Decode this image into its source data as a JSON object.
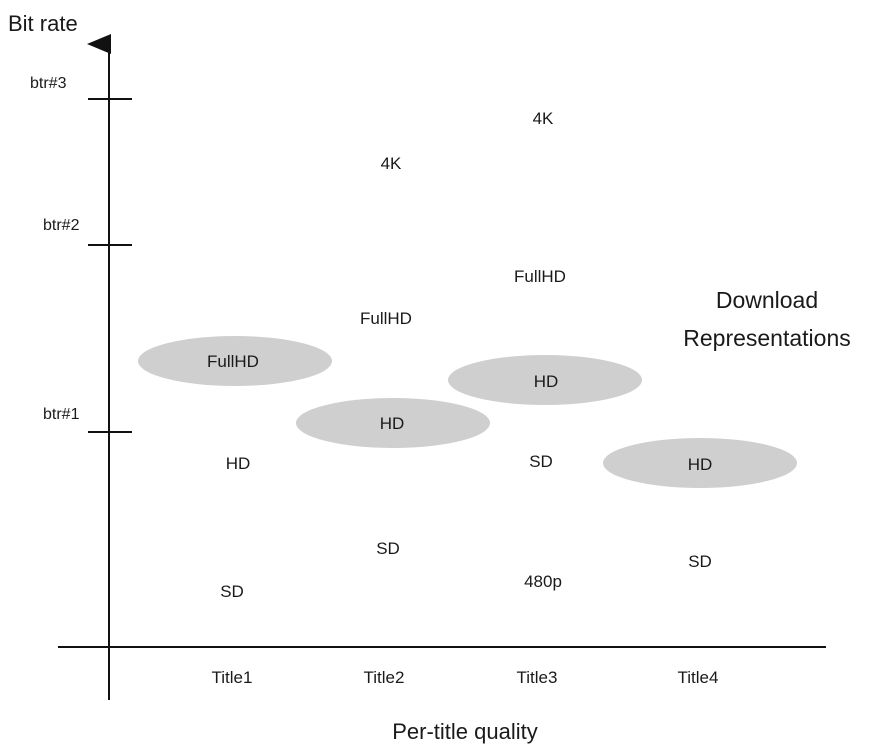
{
  "axes": {
    "y_title": "Bit rate",
    "x_title": "Per-title quality"
  },
  "y_ticks": [
    "btr#3",
    "btr#2",
    "btr#1"
  ],
  "titles": [
    "Title1",
    "Title2",
    "Title3",
    "Title4"
  ],
  "representations": {
    "title1": {
      "fullhd": "FullHD",
      "hd": "HD",
      "sd": "SD"
    },
    "title2": {
      "k4": "4K",
      "fullhd": "FullHD",
      "hd": "HD",
      "sd": "SD"
    },
    "title3": {
      "k4": "4K",
      "fullhd": "FullHD",
      "hd": "HD",
      "sd": "SD",
      "p480": "480p"
    },
    "title4": {
      "hd": "HD",
      "sd": "SD"
    }
  },
  "annotation": {
    "line1": "Download",
    "line2": "Representations"
  },
  "colors": {
    "highlight": "#cfcfcf",
    "axis": "#111111",
    "text": "#1a1a1a"
  }
}
